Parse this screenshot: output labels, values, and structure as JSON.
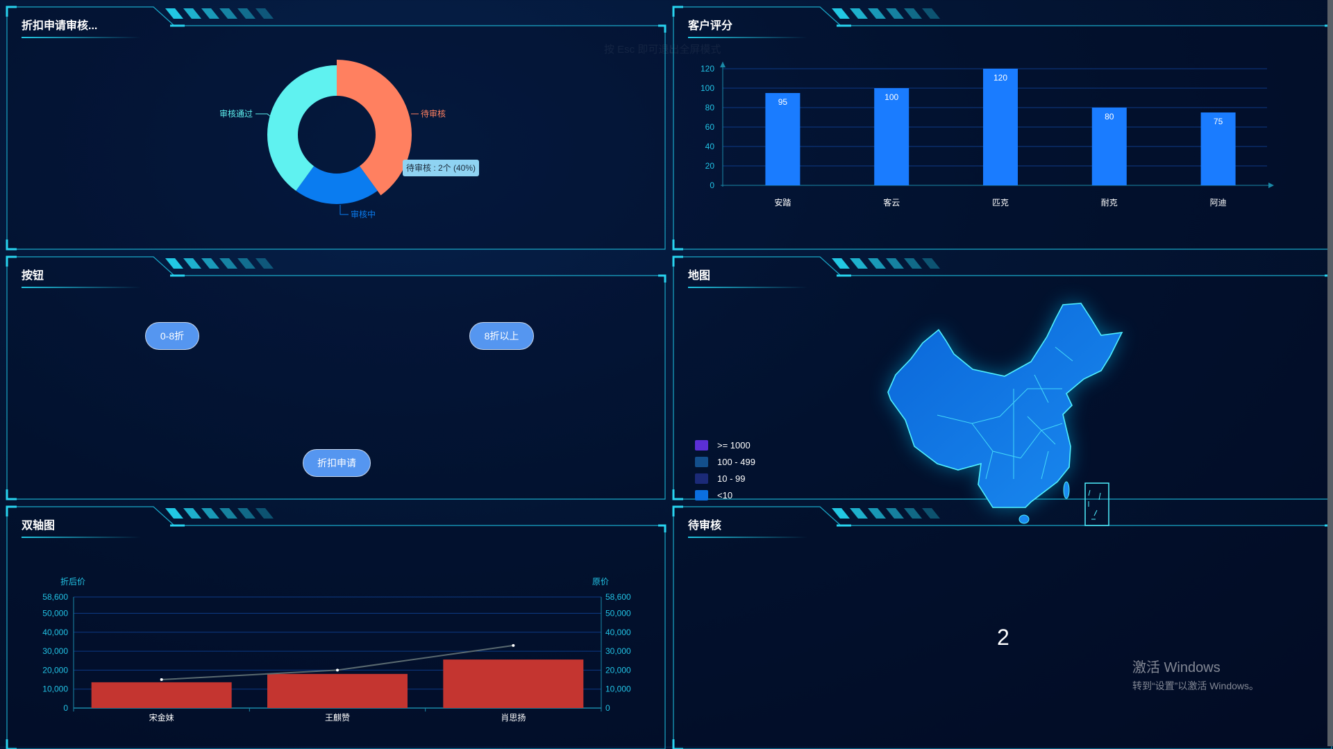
{
  "fullscreen_hint": "按 Esc 即可退出全屏模式",
  "panels": {
    "discount_review": {
      "title": "折扣申请审核..."
    },
    "customer_rating": {
      "title": "客户评分"
    },
    "buttons": {
      "title": "按钮",
      "btn_0_8": "0-8折",
      "btn_8_up": "8折以上",
      "btn_apply": "折扣申请"
    },
    "map": {
      "title": "地图",
      "legend": [
        {
          "label": ">= 1000",
          "color": "#5b2fd6"
        },
        {
          "label": "100 - 499",
          "color": "#134f8c"
        },
        {
          "label": "10 - 99",
          "color": "#1b2a78"
        },
        {
          "label": "<10",
          "color": "#0b6fe0"
        }
      ]
    },
    "dual_axis": {
      "title": "双轴图"
    },
    "pending": {
      "title": "待审核",
      "value": "2"
    }
  },
  "chart_data": [
    {
      "type": "pie",
      "donut": true,
      "categories": [
        "待审核",
        "审核中",
        "审核通过"
      ],
      "values": [
        2,
        1,
        2
      ],
      "colors": [
        "#ff8060",
        "#0a7cf0",
        "#5ff2f0"
      ],
      "tooltip": "待审核 : 2个 (40%)"
    },
    {
      "type": "bar",
      "categories": [
        "安踏",
        "客云",
        "匹克",
        "耐克",
        "阿迪"
      ],
      "values": [
        95,
        100,
        120,
        80,
        75
      ],
      "ylim": [
        0,
        120
      ],
      "yticks": [
        "0",
        "20",
        "40",
        "60",
        "80",
        "100",
        "120"
      ],
      "grid": true,
      "color": "#1a7cff"
    },
    {
      "type": "bar+line",
      "categories": [
        "宋金妹",
        "王麒赞",
        "肖思扬"
      ],
      "series": [
        {
          "name": "折后价",
          "type": "bar",
          "axis": "left",
          "values": [
            13600,
            18000,
            25600
          ],
          "color": "#c43530"
        },
        {
          "name": "原价",
          "type": "line",
          "axis": "right",
          "values": [
            15000,
            20000,
            33000
          ],
          "color": "#5a6a70"
        }
      ],
      "ylim": [
        0,
        58600
      ],
      "yticks": [
        "0",
        "10,000",
        "20,000",
        "30,000",
        "40,000",
        "50,000",
        "58,600"
      ],
      "ylabel_left": "折后价",
      "ylabel_right": "原价",
      "grid": true
    }
  ],
  "watermark": {
    "line1": "激活 Windows",
    "line2": "转到“设置”以激活 Windows。"
  }
}
